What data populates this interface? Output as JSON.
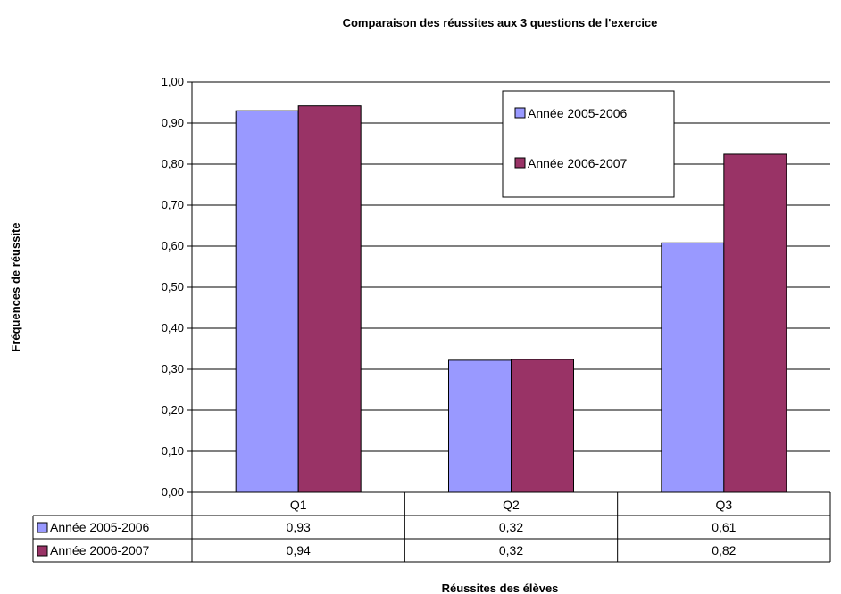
{
  "chart_data": {
    "type": "bar",
    "title": "Comparaison des réussites aux 3 questions de l'exercice",
    "xlabel": "Réussites des élèves",
    "ylabel": "Fréquences de réussite",
    "categories": [
      "Q1",
      "Q2",
      "Q3"
    ],
    "ylim": [
      0,
      1
    ],
    "ytick_step": 0.1,
    "grid": true,
    "legend_position": "top-right",
    "series": [
      {
        "name": "Année 2005-2006",
        "values": [
          0.93,
          0.322,
          0.608
        ],
        "labels": [
          "0,93",
          "0,32",
          "0,61"
        ],
        "color": "#9999ff"
      },
      {
        "name": "Année 2006-2007",
        "values": [
          0.942,
          0.324,
          0.824
        ],
        "labels": [
          "0,94",
          "0,32",
          "0,82"
        ],
        "color": "#993366"
      }
    ]
  }
}
